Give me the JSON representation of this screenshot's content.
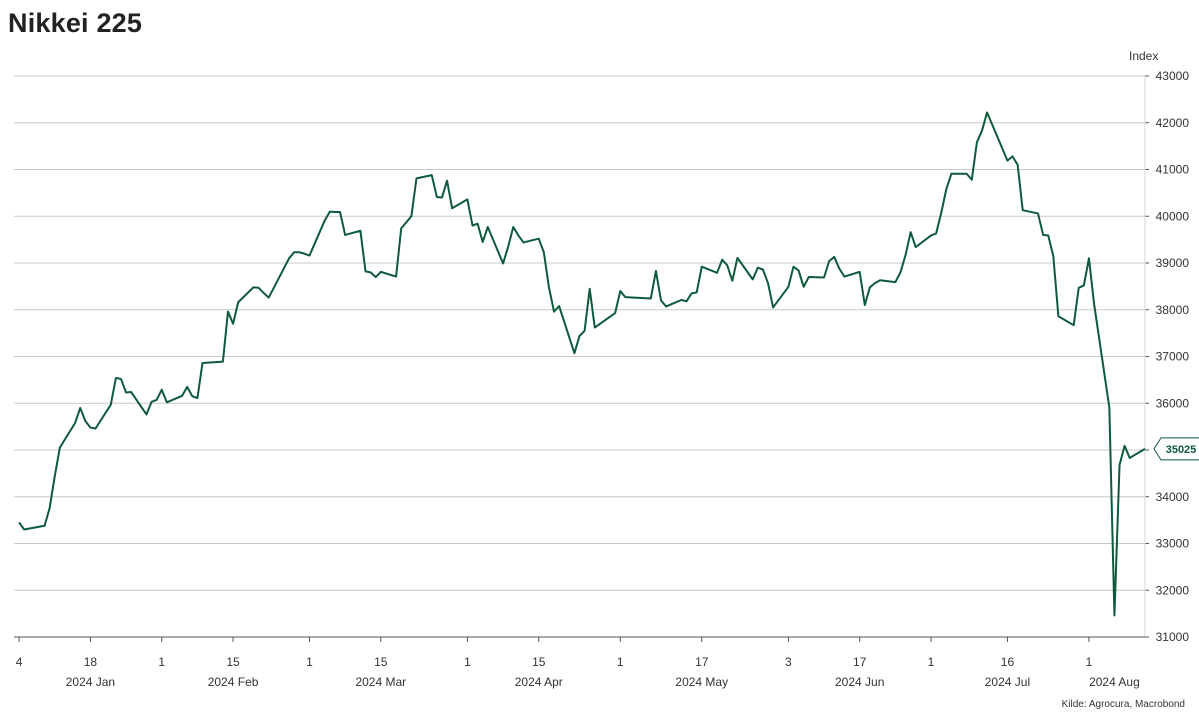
{
  "header": {
    "title": "Nikkei 225",
    "unit": "Index",
    "source": "Kilde: Agrocura, Macrobond"
  },
  "colors": {
    "line": "#0e5a3b",
    "grid": "#c8c8c8",
    "axis": "#555555",
    "badge_border": "#0e5a3b"
  },
  "chart_data": {
    "type": "line",
    "title": "Nikkei 225",
    "ylabel": "Index",
    "ylim": [
      31000,
      43000
    ],
    "yticks": [
      31000,
      32000,
      33000,
      34000,
      35000,
      36000,
      37000,
      38000,
      39000,
      40000,
      41000,
      42000,
      43000
    ],
    "xlim": [
      "2024-01-03",
      "2024-08-12"
    ],
    "grid": true,
    "last_value_label": "35025",
    "x_ticks": [
      {
        "date": "2024-01-04",
        "label": "4"
      },
      {
        "date": "2024-01-18",
        "label": "18"
      },
      {
        "date": "2024-02-01",
        "label": "1"
      },
      {
        "date": "2024-02-15",
        "label": "15"
      },
      {
        "date": "2024-03-01",
        "label": "1"
      },
      {
        "date": "2024-03-15",
        "label": "15"
      },
      {
        "date": "2024-04-01",
        "label": "1"
      },
      {
        "date": "2024-04-15",
        "label": "15"
      },
      {
        "date": "2024-05-01",
        "label": "1"
      },
      {
        "date": "2024-05-17",
        "label": "17"
      },
      {
        "date": "2024-06-03",
        "label": "3"
      },
      {
        "date": "2024-06-17",
        "label": "17"
      },
      {
        "date": "2024-07-01",
        "label": "1"
      },
      {
        "date": "2024-07-16",
        "label": "16"
      },
      {
        "date": "2024-08-01",
        "label": "1"
      }
    ],
    "month_labels": [
      {
        "date": "2024-01-18",
        "label": "2024 Jan"
      },
      {
        "date": "2024-02-15",
        "label": "2024 Feb"
      },
      {
        "date": "2024-03-15",
        "label": "2024 Mar"
      },
      {
        "date": "2024-04-15",
        "label": "2024 Apr"
      },
      {
        "date": "2024-05-17",
        "label": "2024 May"
      },
      {
        "date": "2024-06-17",
        "label": "2024 Jun"
      },
      {
        "date": "2024-07-16",
        "label": "2024 Jul"
      },
      {
        "date": "2024-08-06",
        "label": "2024 Aug"
      }
    ],
    "series": [
      {
        "values": [
          [
            "2024-01-04",
            33450
          ],
          [
            "2024-01-05",
            33300
          ],
          [
            "2024-01-09",
            33380
          ],
          [
            "2024-01-10",
            33760
          ],
          [
            "2024-01-11",
            34440
          ],
          [
            "2024-01-12",
            35050
          ],
          [
            "2024-01-15",
            35580
          ],
          [
            "2024-01-16",
            35900
          ],
          [
            "2024-01-17",
            35620
          ],
          [
            "2024-01-18",
            35480
          ],
          [
            "2024-01-19",
            35460
          ],
          [
            "2024-01-22",
            35970
          ],
          [
            "2024-01-23",
            36540
          ],
          [
            "2024-01-24",
            36520
          ],
          [
            "2024-01-25",
            36230
          ],
          [
            "2024-01-26",
            36240
          ],
          [
            "2024-01-29",
            35760
          ],
          [
            "2024-01-30",
            36030
          ],
          [
            "2024-01-31",
            36070
          ],
          [
            "2024-02-01",
            36290
          ],
          [
            "2024-02-02",
            36020
          ],
          [
            "2024-02-05",
            36160
          ],
          [
            "2024-02-06",
            36350
          ],
          [
            "2024-02-07",
            36150
          ],
          [
            "2024-02-08",
            36110
          ],
          [
            "2024-02-09",
            36860
          ],
          [
            "2024-02-13",
            36890
          ],
          [
            "2024-02-14",
            37960
          ],
          [
            "2024-02-15",
            37700
          ],
          [
            "2024-02-16",
            38160
          ],
          [
            "2024-02-19",
            38480
          ],
          [
            "2024-02-20",
            38470
          ],
          [
            "2024-02-21",
            38360
          ],
          [
            "2024-02-22",
            38260
          ],
          [
            "2024-02-26",
            39100
          ],
          [
            "2024-02-27",
            39230
          ],
          [
            "2024-02-28",
            39230
          ],
          [
            "2024-02-29",
            39200
          ],
          [
            "2024-03-01",
            39160
          ],
          [
            "2024-03-04",
            39910
          ],
          [
            "2024-03-05",
            40100
          ],
          [
            "2024-03-06",
            40090
          ],
          [
            "2024-03-07",
            40090
          ],
          [
            "2024-03-08",
            39600
          ],
          [
            "2024-03-11",
            39690
          ],
          [
            "2024-03-12",
            38820
          ],
          [
            "2024-03-13",
            38800
          ],
          [
            "2024-03-14",
            38700
          ],
          [
            "2024-03-15",
            38810
          ],
          [
            "2024-03-18",
            38710
          ],
          [
            "2024-03-19",
            39740
          ],
          [
            "2024-03-21",
            40000
          ],
          [
            "2024-03-22",
            40810
          ],
          [
            "2024-03-25",
            40880
          ],
          [
            "2024-03-26",
            40410
          ],
          [
            "2024-03-27",
            40400
          ],
          [
            "2024-03-28",
            40760
          ],
          [
            "2024-03-29",
            40170
          ],
          [
            "2024-04-01",
            40360
          ],
          [
            "2024-04-02",
            39800
          ],
          [
            "2024-04-03",
            39840
          ],
          [
            "2024-04-04",
            39450
          ],
          [
            "2024-04-05",
            39770
          ],
          [
            "2024-04-08",
            38990
          ],
          [
            "2024-04-09",
            39350
          ],
          [
            "2024-04-10",
            39770
          ],
          [
            "2024-04-11",
            39590
          ],
          [
            "2024-04-12",
            39440
          ],
          [
            "2024-04-15",
            39520
          ],
          [
            "2024-04-16",
            39230
          ],
          [
            "2024-04-17",
            38480
          ],
          [
            "2024-04-18",
            37960
          ],
          [
            "2024-04-19",
            38080
          ],
          [
            "2024-04-22",
            37070
          ],
          [
            "2024-04-23",
            37440
          ],
          [
            "2024-04-24",
            37550
          ],
          [
            "2024-04-25",
            38450
          ],
          [
            "2024-04-26",
            37620
          ],
          [
            "2024-04-30",
            37930
          ],
          [
            "2024-05-01",
            38400
          ],
          [
            "2024-05-02",
            38270
          ],
          [
            "2024-05-07",
            38240
          ],
          [
            "2024-05-08",
            38830
          ],
          [
            "2024-05-09",
            38200
          ],
          [
            "2024-05-10",
            38070
          ],
          [
            "2024-05-13",
            38210
          ],
          [
            "2024-05-14",
            38180
          ],
          [
            "2024-05-15",
            38350
          ],
          [
            "2024-05-16",
            38370
          ],
          [
            "2024-05-17",
            38920
          ],
          [
            "2024-05-20",
            38790
          ],
          [
            "2024-05-21",
            39070
          ],
          [
            "2024-05-22",
            38950
          ],
          [
            "2024-05-23",
            38620
          ],
          [
            "2024-05-24",
            39110
          ],
          [
            "2024-05-27",
            38650
          ],
          [
            "2024-05-28",
            38900
          ],
          [
            "2024-05-29",
            38860
          ],
          [
            "2024-05-30",
            38570
          ],
          [
            "2024-05-31",
            38050
          ],
          [
            "2024-06-03",
            38490
          ],
          [
            "2024-06-04",
            38920
          ],
          [
            "2024-06-05",
            38840
          ],
          [
            "2024-06-06",
            38490
          ],
          [
            "2024-06-07",
            38700
          ],
          [
            "2024-06-10",
            38690
          ],
          [
            "2024-06-11",
            39040
          ],
          [
            "2024-06-12",
            39130
          ],
          [
            "2024-06-13",
            38880
          ],
          [
            "2024-06-14",
            38710
          ],
          [
            "2024-06-17",
            38810
          ],
          [
            "2024-06-18",
            38100
          ],
          [
            "2024-06-19",
            38480
          ],
          [
            "2024-06-20",
            38570
          ],
          [
            "2024-06-21",
            38630
          ],
          [
            "2024-06-24",
            38590
          ],
          [
            "2024-06-25",
            38800
          ],
          [
            "2024-06-26",
            39170
          ],
          [
            "2024-06-27",
            39660
          ],
          [
            "2024-06-28",
            39340
          ],
          [
            "2024-07-01",
            39590
          ],
          [
            "2024-07-02",
            39630
          ],
          [
            "2024-07-03",
            40070
          ],
          [
            "2024-07-04",
            40580
          ],
          [
            "2024-07-05",
            40910
          ],
          [
            "2024-07-08",
            40910
          ],
          [
            "2024-07-09",
            40780
          ],
          [
            "2024-07-10",
            41580
          ],
          [
            "2024-07-11",
            41830
          ],
          [
            "2024-07-12",
            42220
          ],
          [
            "2024-07-16",
            41190
          ],
          [
            "2024-07-17",
            41280
          ],
          [
            "2024-07-18",
            41100
          ],
          [
            "2024-07-19",
            40130
          ],
          [
            "2024-07-22",
            40060
          ],
          [
            "2024-07-23",
            39600
          ],
          [
            "2024-07-24",
            39590
          ],
          [
            "2024-07-25",
            39150
          ],
          [
            "2024-07-26",
            37860
          ],
          [
            "2024-07-29",
            37670
          ],
          [
            "2024-07-30",
            38470
          ],
          [
            "2024-07-31",
            38520
          ],
          [
            "2024-08-01",
            39100
          ],
          [
            "2024-08-02",
            38130
          ],
          [
            "2024-08-05",
            35910
          ],
          [
            "2024-08-06",
            31460
          ],
          [
            "2024-08-07",
            34680
          ],
          [
            "2024-08-08",
            35090
          ],
          [
            "2024-08-09",
            34830
          ],
          [
            "2024-08-12",
            35025
          ]
        ]
      }
    ]
  }
}
